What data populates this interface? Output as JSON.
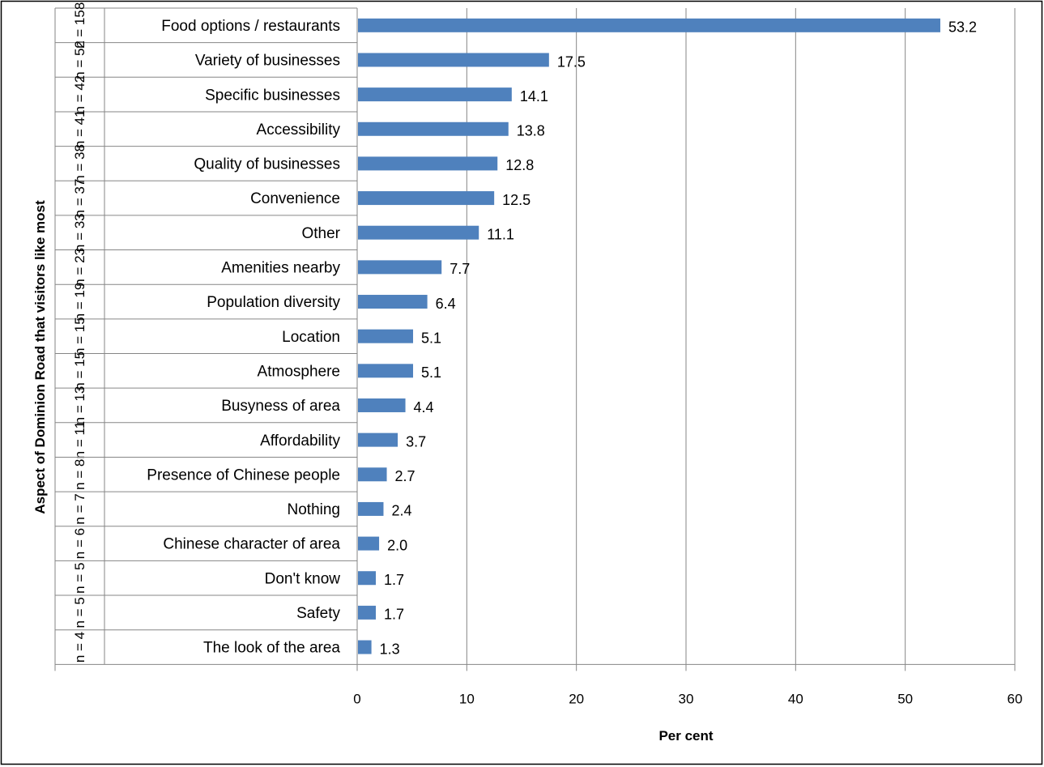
{
  "chart_data": {
    "type": "bar",
    "orientation": "horizontal",
    "categories": [
      "Food options / restaurants",
      "Variety of businesses",
      "Specific businesses",
      "Accessibility",
      "Quality of businesses",
      "Convenience",
      "Other",
      "Amenities nearby",
      "Population diversity",
      "Location",
      "Atmosphere",
      "Busyness of area",
      "Affordability",
      "Presence of Chinese people",
      "Nothing",
      "Chinese character of area",
      "Don't know",
      "Safety",
      "The look of the area"
    ],
    "n_labels": [
      "n = 158",
      "n = 52",
      "n = 42",
      "n = 41",
      "n = 38",
      "n = 37",
      "n = 33",
      "n = 23",
      "n = 19",
      "n = 15",
      "n = 15",
      "n = 13",
      "n = 11",
      "n = 8",
      "n = 7",
      "n = 6",
      "n = 5",
      "n = 5",
      "n = 4"
    ],
    "values": [
      53.2,
      17.5,
      14.1,
      13.8,
      12.8,
      12.5,
      11.1,
      7.7,
      6.4,
      5.1,
      5.1,
      4.4,
      3.7,
      2.7,
      2.4,
      2.0,
      1.7,
      1.7,
      1.3
    ],
    "value_labels": [
      "53.2",
      "17.5",
      "14.1",
      "13.8",
      "12.8",
      "12.5",
      "11.1",
      "7.7",
      "6.4",
      "5.1",
      "5.1",
      "4.4",
      "3.7",
      "2.7",
      "2.4",
      "2.0",
      "1.7",
      "1.7",
      "1.3"
    ],
    "xlim": [
      0,
      60
    ],
    "xticks": [
      0,
      10,
      20,
      30,
      40,
      50,
      60
    ],
    "xtick_labels": [
      "0",
      "10",
      "20",
      "30",
      "40",
      "50",
      "60"
    ],
    "xlabel": "Per cent",
    "ylabel": "Aspect of Dominion Road that visitors like most",
    "grid": "vertical",
    "legend": "none",
    "colors": {
      "bar": "#4f81bd",
      "grid": "#868686",
      "border": "#000000"
    }
  }
}
